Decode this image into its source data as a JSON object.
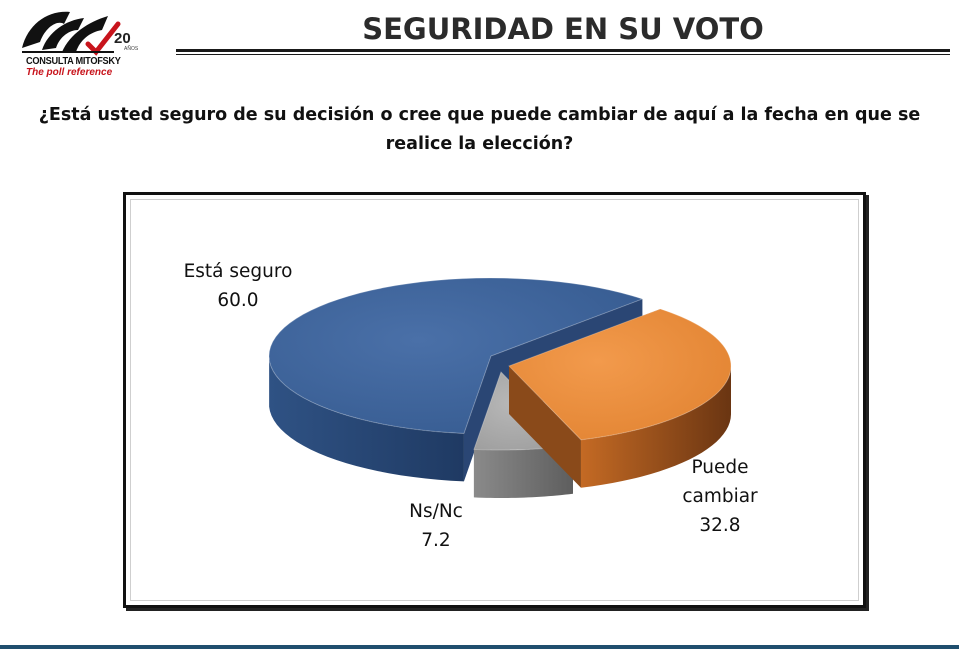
{
  "brand": {
    "name": "CONSULTA MITOFSKY",
    "tagline": "The poll reference",
    "anniversary": "20",
    "anniversary_unit": "AÑOS"
  },
  "header": {
    "title": "SEGURIDAD EN SU VOTO"
  },
  "question": {
    "line1": "¿Está usted seguro de su decisión o cree que puede cambiar de aquí a la fecha en que se",
    "line2": "realice la elección?"
  },
  "chart_data": {
    "type": "pie",
    "style": "3d-exploded",
    "title": "",
    "slices": [
      {
        "label": "Está seguro",
        "value": 60.0,
        "display": "60.0",
        "color": "#3a5f96",
        "side_color": "#2a4674"
      },
      {
        "label": "Puede cambiar",
        "value": 32.8,
        "display": "32.8",
        "color": "#e98c3d",
        "side_color": "#8a4a1a"
      },
      {
        "label": "Ns/Nc",
        "value": 7.2,
        "display": "7.2",
        "color": "#a6a6a6",
        "side_color": "#6f6f6f"
      }
    ],
    "labels": {
      "seguro": {
        "name": "Está seguro",
        "value": "60.0"
      },
      "cambiar": {
        "name_line1": "Puede",
        "name_line2": "cambiar",
        "value": "32.8"
      },
      "nsnc": {
        "name": "Ns/Nc",
        "value": "7.2"
      }
    }
  }
}
